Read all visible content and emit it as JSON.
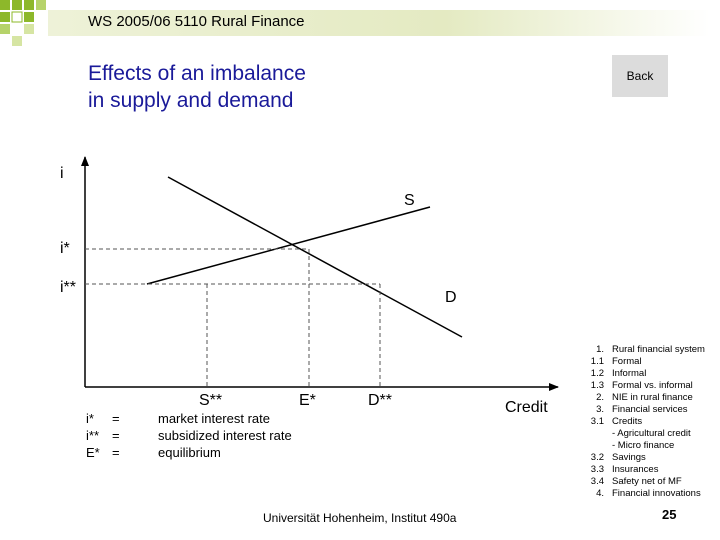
{
  "header": {
    "course": "WS 2005/06 5110 Rural Finance"
  },
  "title": {
    "line1": "Effects of an imbalance",
    "line2": "in supply and demand"
  },
  "back_button": {
    "label": "Back"
  },
  "diagram": {
    "y_axis_label": "i",
    "x_axis_label": "Credit",
    "supply_label": "S",
    "demand_label": "D",
    "rate_eq_label": "i*",
    "rate_sub_label": "i**",
    "supply_at_sub_label": "S**",
    "equilibrium_label": "E*",
    "demand_at_sub_label": "D**"
  },
  "legend": [
    {
      "symbol": "i*",
      "eq": "=",
      "text": "market interest rate"
    },
    {
      "symbol": "i**",
      "eq": "=",
      "text": "subsidized interest rate"
    },
    {
      "symbol": "E*",
      "eq": "=",
      "text": "equilibrium"
    }
  ],
  "toc": [
    {
      "num": "1.",
      "text": "Rural financial system"
    },
    {
      "num": "1.1",
      "text": "Formal"
    },
    {
      "num": "1.2",
      "text": "Informal"
    },
    {
      "num": "1.3",
      "text": "Formal vs. informal"
    },
    {
      "num": "2.",
      "text": "NIE in rural finance"
    },
    {
      "num": "3.",
      "text": "Financial services"
    },
    {
      "num": "3.1",
      "text": "Credits"
    },
    {
      "num": "",
      "text": "- Agricultural credit"
    },
    {
      "num": "",
      "text": "- Micro finance"
    },
    {
      "num": "3.2",
      "text": "Savings"
    },
    {
      "num": "3.3",
      "text": "Insurances"
    },
    {
      "num": "3.4",
      "text": "Safety net of MF"
    },
    {
      "num": "4.",
      "text": "Financial innovations"
    }
  ],
  "footer": {
    "institution": "Universität Hohenheim, Institut 490a",
    "page_number": "25"
  },
  "colors": {
    "title": "#1a1a99",
    "deco_square": "#8db82a",
    "header_bar": "#e4eac2",
    "button_bg": "#dcdcdc"
  }
}
